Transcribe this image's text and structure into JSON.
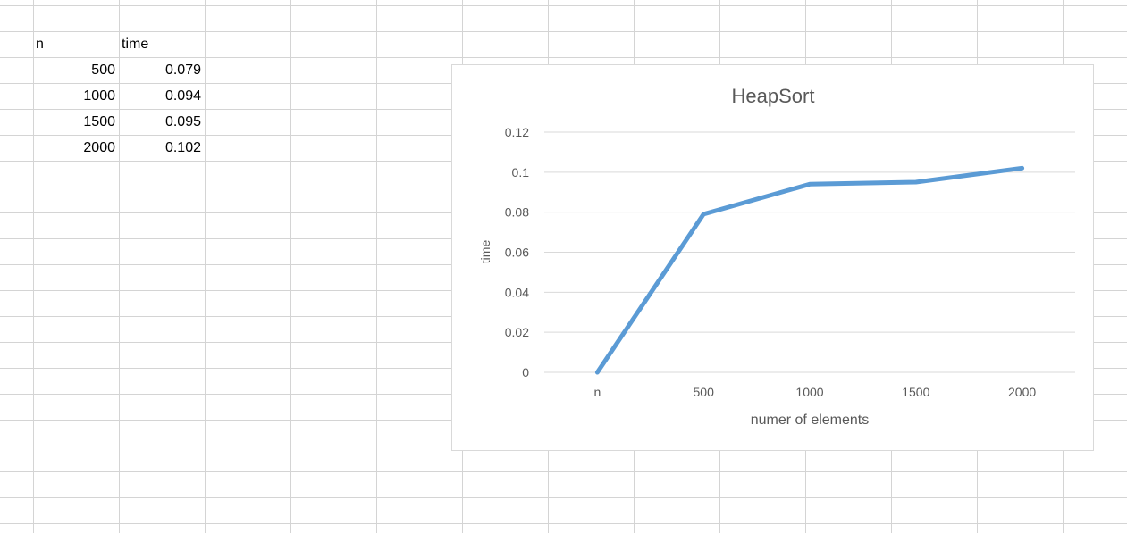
{
  "sheet": {
    "headers": {
      "col_a": "n",
      "col_b": "time"
    },
    "rows": [
      {
        "n": "500",
        "time": "0.079"
      },
      {
        "n": "1000",
        "time": "0.094"
      },
      {
        "n": "1500",
        "time": "0.095"
      },
      {
        "n": "2000",
        "time": "0.102"
      }
    ]
  },
  "chart_data": {
    "type": "line",
    "title": "HeapSort",
    "xlabel": "numer of elements",
    "ylabel": "time",
    "categories": [
      "n",
      "500",
      "1000",
      "1500",
      "2000"
    ],
    "series": [
      {
        "values": [
          0,
          0.079,
          0.094,
          0.095,
          0.102
        ]
      }
    ],
    "ylim": [
      0,
      0.12
    ],
    "yticks": [
      "0",
      "0.02",
      "0.04",
      "0.06",
      "0.08",
      "0.1",
      "0.12"
    ],
    "grid": true,
    "legend": "none",
    "line_color": "#5b9bd5"
  }
}
